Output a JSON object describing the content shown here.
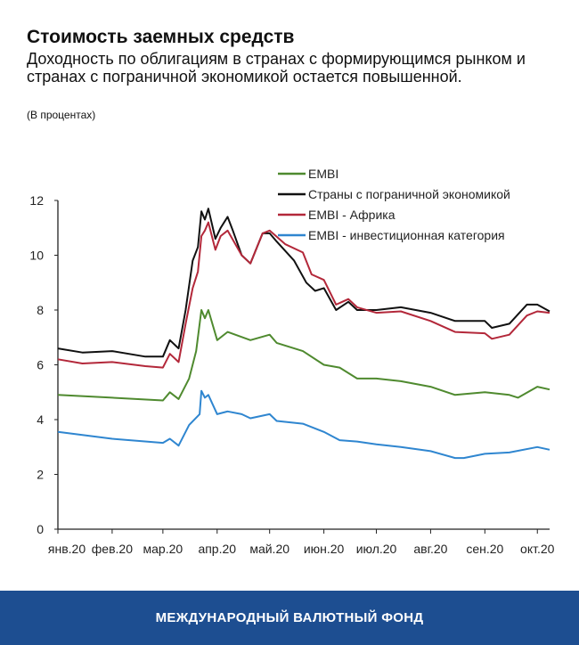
{
  "header": {
    "title": "Стоимость заемных средств",
    "subtitle": "Доходность по облигациям в странах с формирующимся рынком и странах с пограничной экономикой остается повышенной.",
    "units": "(В процентах)"
  },
  "footer": {
    "label": "МЕЖДУНАРОДНЫЙ ВАЛЮТНЫЙ ФОНД"
  },
  "chart_data": {
    "type": "line",
    "title": "",
    "xlabel": "",
    "ylabel": "",
    "ylim": [
      0,
      12
    ],
    "yticks": [
      0,
      2,
      4,
      6,
      8,
      10,
      12
    ],
    "xlim": [
      "2020-01-01",
      "2020-10-08"
    ],
    "xticks": [
      {
        "date": "2020-01-01",
        "label": "янв.20"
      },
      {
        "date": "2020-02-01",
        "label": "фев.20"
      },
      {
        "date": "2020-03-01",
        "label": "мар.20"
      },
      {
        "date": "2020-04-01",
        "label": "апр.20"
      },
      {
        "date": "2020-05-01",
        "label": "май.20"
      },
      {
        "date": "2020-06-01",
        "label": "июн.20"
      },
      {
        "date": "2020-07-01",
        "label": "июл.20"
      },
      {
        "date": "2020-08-01",
        "label": "авг.20"
      },
      {
        "date": "2020-09-01",
        "label": "сен.20"
      },
      {
        "date": "2020-10-01",
        "label": "окт.20"
      }
    ],
    "grid": false,
    "legend": "top-right",
    "series": [
      {
        "name": "EMBI",
        "color": "#4f8a2f",
        "points": [
          [
            "2020-01-01",
            4.9
          ],
          [
            "2020-02-01",
            4.8
          ],
          [
            "2020-03-01",
            4.7
          ],
          [
            "2020-03-05",
            5.0
          ],
          [
            "2020-03-10",
            4.75
          ],
          [
            "2020-03-16",
            5.5
          ],
          [
            "2020-03-20",
            6.5
          ],
          [
            "2020-03-23",
            8.0
          ],
          [
            "2020-03-25",
            7.7
          ],
          [
            "2020-03-27",
            8.0
          ],
          [
            "2020-04-01",
            6.9
          ],
          [
            "2020-04-07",
            7.2
          ],
          [
            "2020-04-20",
            6.9
          ],
          [
            "2020-05-01",
            7.1
          ],
          [
            "2020-05-05",
            6.8
          ],
          [
            "2020-05-20",
            6.5
          ],
          [
            "2020-06-01",
            6.0
          ],
          [
            "2020-06-10",
            5.9
          ],
          [
            "2020-06-20",
            5.5
          ],
          [
            "2020-07-01",
            5.5
          ],
          [
            "2020-07-15",
            5.4
          ],
          [
            "2020-08-01",
            5.2
          ],
          [
            "2020-08-15",
            4.9
          ],
          [
            "2020-09-01",
            5.0
          ],
          [
            "2020-09-15",
            4.9
          ],
          [
            "2020-09-20",
            4.8
          ],
          [
            "2020-10-01",
            5.2
          ],
          [
            "2020-10-08",
            5.1
          ]
        ]
      },
      {
        "name": "Страны с пограничной экономикой",
        "color": "#111111",
        "points": [
          [
            "2020-01-01",
            6.6
          ],
          [
            "2020-01-15",
            6.45
          ],
          [
            "2020-02-01",
            6.5
          ],
          [
            "2020-02-20",
            6.3
          ],
          [
            "2020-03-01",
            6.3
          ],
          [
            "2020-03-05",
            6.9
          ],
          [
            "2020-03-10",
            6.6
          ],
          [
            "2020-03-14",
            8.0
          ],
          [
            "2020-03-18",
            9.8
          ],
          [
            "2020-03-21",
            10.3
          ],
          [
            "2020-03-23",
            11.6
          ],
          [
            "2020-03-25",
            11.3
          ],
          [
            "2020-03-27",
            11.7
          ],
          [
            "2020-03-31",
            10.6
          ],
          [
            "2020-04-03",
            11.0
          ],
          [
            "2020-04-07",
            11.4
          ],
          [
            "2020-04-10",
            10.9
          ],
          [
            "2020-04-15",
            10.0
          ],
          [
            "2020-04-20",
            9.7
          ],
          [
            "2020-04-27",
            10.8
          ],
          [
            "2020-05-01",
            10.8
          ],
          [
            "2020-05-05",
            10.5
          ],
          [
            "2020-05-15",
            9.8
          ],
          [
            "2020-05-22",
            9.0
          ],
          [
            "2020-05-27",
            8.7
          ],
          [
            "2020-06-01",
            8.8
          ],
          [
            "2020-06-08",
            8.0
          ],
          [
            "2020-06-15",
            8.3
          ],
          [
            "2020-06-20",
            8.0
          ],
          [
            "2020-07-01",
            8.0
          ],
          [
            "2020-07-15",
            8.1
          ],
          [
            "2020-08-01",
            7.9
          ],
          [
            "2020-08-15",
            7.6
          ],
          [
            "2020-09-01",
            7.6
          ],
          [
            "2020-09-05",
            7.35
          ],
          [
            "2020-09-15",
            7.5
          ],
          [
            "2020-09-25",
            8.2
          ],
          [
            "2020-10-01",
            8.2
          ],
          [
            "2020-10-08",
            7.95
          ]
        ]
      },
      {
        "name": "EMBI - Африка",
        "color": "#b3283a",
        "points": [
          [
            "2020-01-01",
            6.2
          ],
          [
            "2020-01-15",
            6.05
          ],
          [
            "2020-02-01",
            6.1
          ],
          [
            "2020-02-20",
            5.95
          ],
          [
            "2020-03-01",
            5.9
          ],
          [
            "2020-03-05",
            6.4
          ],
          [
            "2020-03-10",
            6.1
          ],
          [
            "2020-03-14",
            7.5
          ],
          [
            "2020-03-18",
            8.8
          ],
          [
            "2020-03-21",
            9.4
          ],
          [
            "2020-03-23",
            10.7
          ],
          [
            "2020-03-25",
            10.9
          ],
          [
            "2020-03-27",
            11.2
          ],
          [
            "2020-03-31",
            10.2
          ],
          [
            "2020-04-03",
            10.7
          ],
          [
            "2020-04-07",
            10.9
          ],
          [
            "2020-04-15",
            10.0
          ],
          [
            "2020-04-20",
            9.7
          ],
          [
            "2020-04-27",
            10.8
          ],
          [
            "2020-05-01",
            10.9
          ],
          [
            "2020-05-10",
            10.4
          ],
          [
            "2020-05-20",
            10.1
          ],
          [
            "2020-05-25",
            9.3
          ],
          [
            "2020-06-01",
            9.1
          ],
          [
            "2020-06-08",
            8.2
          ],
          [
            "2020-06-15",
            8.4
          ],
          [
            "2020-06-20",
            8.1
          ],
          [
            "2020-07-01",
            7.9
          ],
          [
            "2020-07-15",
            7.95
          ],
          [
            "2020-08-01",
            7.6
          ],
          [
            "2020-08-15",
            7.2
          ],
          [
            "2020-09-01",
            7.15
          ],
          [
            "2020-09-05",
            6.95
          ],
          [
            "2020-09-15",
            7.1
          ],
          [
            "2020-09-25",
            7.8
          ],
          [
            "2020-10-01",
            7.95
          ],
          [
            "2020-10-08",
            7.9
          ]
        ]
      },
      {
        "name": "EMBI - инвестиционная категория",
        "color": "#2f86d0",
        "points": [
          [
            "2020-01-01",
            3.55
          ],
          [
            "2020-02-01",
            3.3
          ],
          [
            "2020-03-01",
            3.15
          ],
          [
            "2020-03-05",
            3.3
          ],
          [
            "2020-03-10",
            3.05
          ],
          [
            "2020-03-16",
            3.8
          ],
          [
            "2020-03-22",
            4.2
          ],
          [
            "2020-03-23",
            5.05
          ],
          [
            "2020-03-25",
            4.8
          ],
          [
            "2020-03-27",
            4.9
          ],
          [
            "2020-04-01",
            4.2
          ],
          [
            "2020-04-07",
            4.3
          ],
          [
            "2020-04-15",
            4.2
          ],
          [
            "2020-04-20",
            4.05
          ],
          [
            "2020-05-01",
            4.2
          ],
          [
            "2020-05-05",
            3.95
          ],
          [
            "2020-05-20",
            3.85
          ],
          [
            "2020-06-01",
            3.55
          ],
          [
            "2020-06-10",
            3.25
          ],
          [
            "2020-06-20",
            3.2
          ],
          [
            "2020-07-01",
            3.1
          ],
          [
            "2020-07-15",
            3.0
          ],
          [
            "2020-08-01",
            2.85
          ],
          [
            "2020-08-15",
            2.6
          ],
          [
            "2020-08-20",
            2.6
          ],
          [
            "2020-09-01",
            2.75
          ],
          [
            "2020-09-15",
            2.8
          ],
          [
            "2020-10-01",
            3.0
          ],
          [
            "2020-10-08",
            2.9
          ]
        ]
      }
    ]
  }
}
